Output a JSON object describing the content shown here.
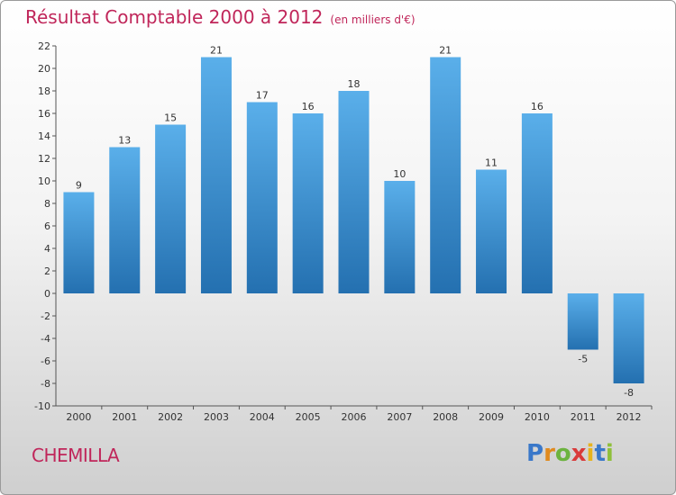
{
  "chart_data": {
    "type": "bar",
    "title": "Résultat Comptable 2000 à 2012",
    "subtitle": "(en milliers d'€)",
    "categories": [
      "2000",
      "2001",
      "2002",
      "2003",
      "2004",
      "2005",
      "2006",
      "2007",
      "2008",
      "2009",
      "2010",
      "2011",
      "2012"
    ],
    "values": [
      9,
      13,
      15,
      21,
      17,
      16,
      18,
      10,
      21,
      11,
      16,
      -5,
      -8
    ],
    "value_labels": [
      "9",
      "13",
      "15",
      "21",
      "17",
      "16",
      "18",
      "10",
      "21",
      "11",
      "16",
      "-5",
      "-8"
    ],
    "ylim": [
      -10,
      22
    ],
    "yticks": [
      "22",
      "20",
      "18",
      "16",
      "14",
      "12",
      "10",
      "8",
      "6",
      "4",
      "2",
      "0",
      "-2",
      "-4",
      "-6",
      "-8",
      "-10"
    ],
    "xlabel": "",
    "ylabel": "",
    "grid": false,
    "colors": {
      "bar_top": "#5aafea",
      "bar_bottom": "#2470b0",
      "title": "#c0265a"
    }
  },
  "footer": {
    "place": "CHEMILLA"
  },
  "brand": {
    "letters": [
      "P",
      "r",
      "o",
      "x",
      "i",
      "t",
      "i"
    ],
    "colors": [
      "#3a78c9",
      "#e08a1e",
      "#6cb33f",
      "#d93a3a",
      "#e6b31e",
      "#3a78c9",
      "#8fbf3a"
    ]
  }
}
